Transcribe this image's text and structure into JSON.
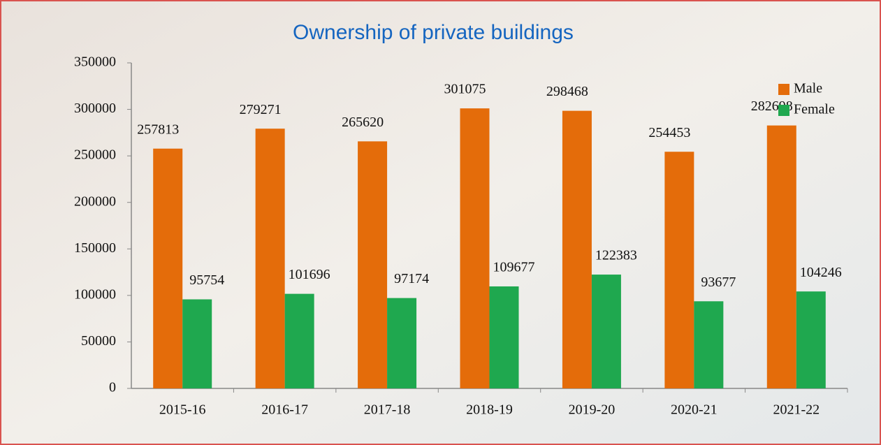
{
  "chart_data": {
    "type": "bar",
    "title": "Ownership of private buildings",
    "categories": [
      "2015-16",
      "2016-17",
      "2017-18",
      "2018-19",
      "2019-20",
      "2020-21",
      "2021-22"
    ],
    "series": [
      {
        "name": "Male",
        "color": "#e46c0a",
        "values": [
          257813,
          279271,
          265620,
          301075,
          298468,
          254453,
          282698
        ]
      },
      {
        "name": "Female",
        "color": "#1fa84f",
        "values": [
          95754,
          101696,
          97174,
          109677,
          122383,
          93677,
          104246
        ]
      }
    ],
    "ylim": [
      0,
      350000
    ],
    "yticks": [
      0,
      50000,
      100000,
      150000,
      200000,
      250000,
      300000,
      350000
    ],
    "legend": "top-right"
  }
}
